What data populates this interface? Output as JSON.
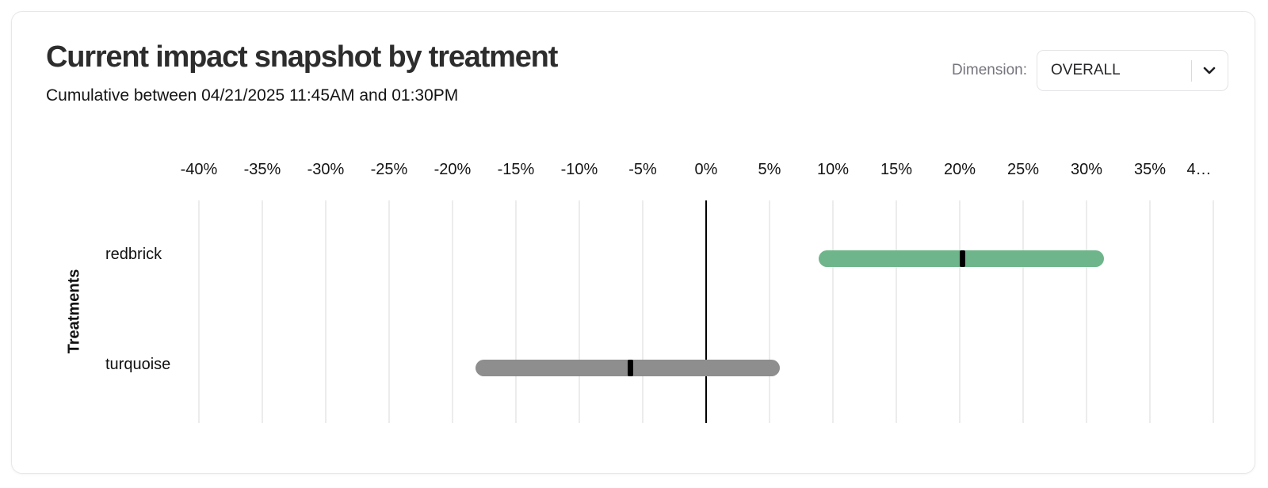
{
  "card": {
    "title": "Current impact snapshot by treatment",
    "subtitle": "Cumulative between 04/21/2025 11:45AM and 01:30PM",
    "dimension": {
      "label": "Dimension:",
      "value": "OVERALL"
    }
  },
  "chart_data": {
    "type": "bar",
    "variant": "horizontal_interval",
    "title": "Current impact snapshot by treatment",
    "xlabel": "",
    "ylabel": "Treatments",
    "x_unit": "percent",
    "xlim": [
      -40,
      40
    ],
    "x_ticks": [
      -40,
      -35,
      -30,
      -25,
      -20,
      -15,
      -10,
      -5,
      0,
      5,
      10,
      15,
      20,
      25,
      30,
      35,
      40
    ],
    "x_tick_labels": [
      "-40%",
      "-35%",
      "-30%",
      "-25%",
      "-20%",
      "-15%",
      "-10%",
      "-5%",
      "0%",
      "5%",
      "10%",
      "15%",
      "20%",
      "25%",
      "30%",
      "35%",
      "4…"
    ],
    "grid": true,
    "zero_line": true,
    "legend": "none",
    "categories": [
      "redbrick",
      "turquoise"
    ],
    "series": [
      {
        "name": "redbrick",
        "interval_low": 8.9,
        "interval_high": 31.4,
        "point": 20.2,
        "color": "#6fb58b"
      },
      {
        "name": "turquoise",
        "interval_low": -18.2,
        "interval_high": 5.8,
        "point": -6.0,
        "color": "#8e8e8e"
      }
    ],
    "point_marker_color": "#000000"
  },
  "colors": {
    "card_border": "#e7e7e9",
    "grid_line": "#ececec",
    "zero_line": "#000000",
    "text_primary": "#2d2d2d",
    "text_secondary": "#75757d",
    "positive_bar": "#6fb58b",
    "neutral_bar": "#8e8e8e"
  }
}
